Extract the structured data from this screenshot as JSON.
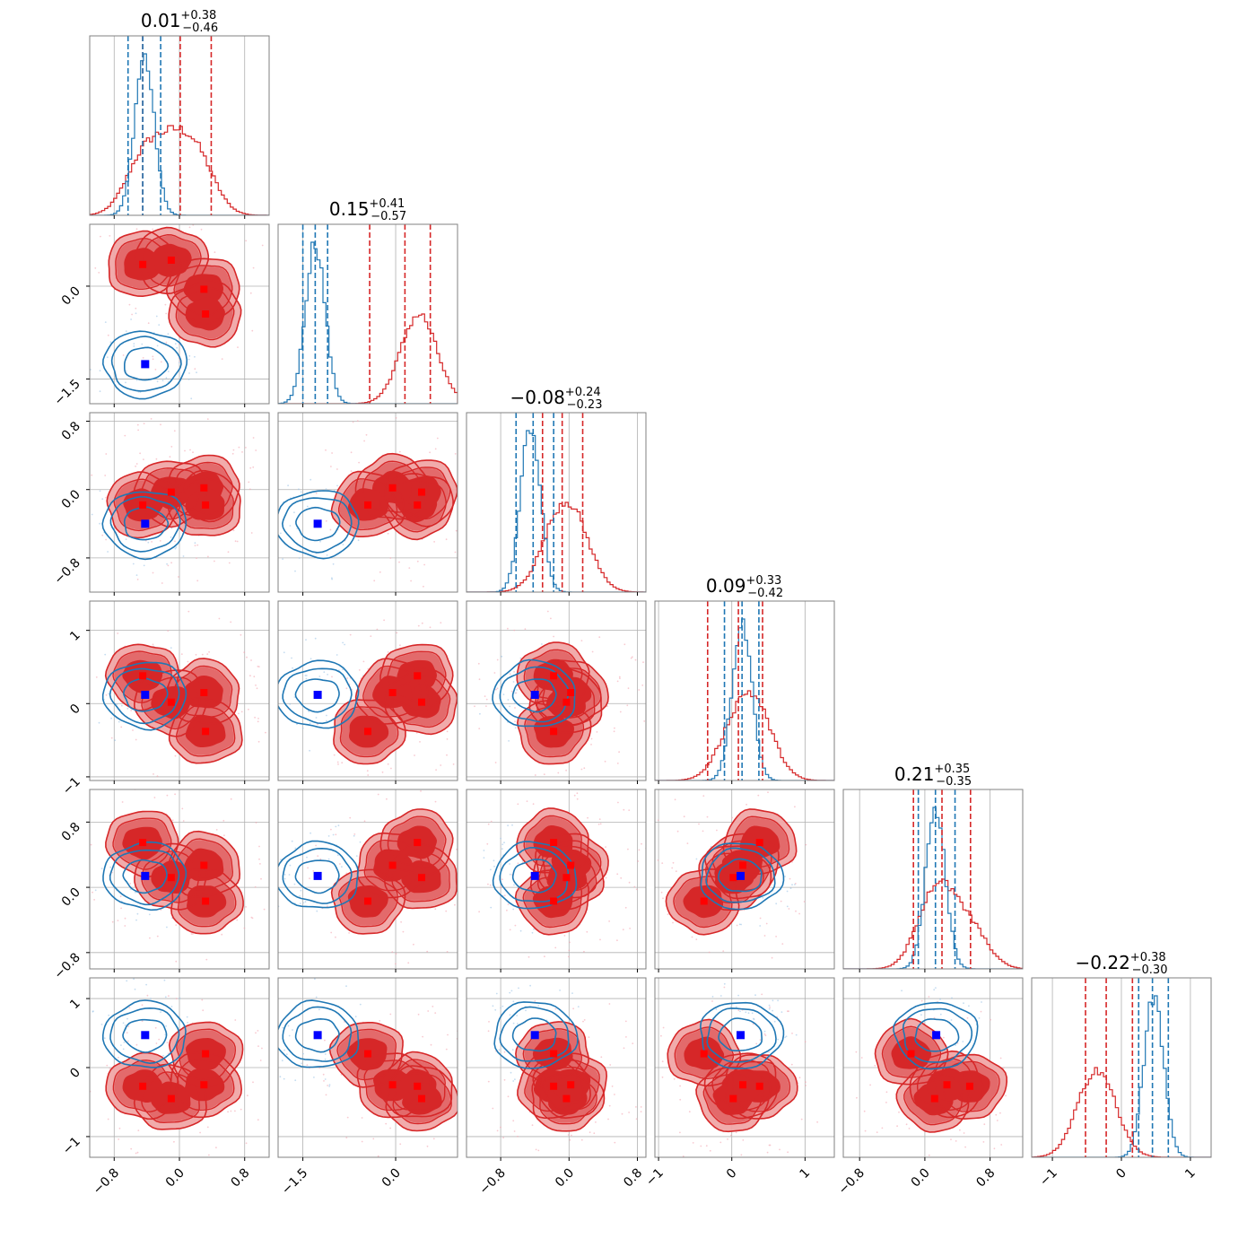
{
  "figure": {
    "colors": {
      "red": "#d62728",
      "blue": "#1f77b4",
      "red_fill_light": "#f0a6a6",
      "red_fill_mid": "#e36a6b",
      "red_fill_dark": "#d62728",
      "marker_red": "#ff0000",
      "marker_blue": "#0000ff",
      "grid": "#b0b0b0"
    }
  },
  "chart_data": {
    "type": "corner",
    "description_free": true,
    "params": [
      {
        "title_main": "0.01",
        "title_plus": "+0.38",
        "title_minus": "−0.46",
        "range": [
          -1.1,
          1.1
        ],
        "ticks": [
          -0.8,
          0.0,
          0.8
        ],
        "tick_labels": [
          "−0.8",
          "0.0",
          "0.8"
        ],
        "red_quantiles": [
          -0.45,
          0.01,
          0.39
        ],
        "blue_quantiles": [
          -0.63,
          -0.45,
          -0.23
        ],
        "truth": -0.42
      },
      {
        "title_main": "0.15",
        "title_plus": "+0.41",
        "title_minus": "−0.57",
        "range": [
          -1.9,
          1.0
        ],
        "ticks": [
          -1.5,
          0.0
        ],
        "tick_labels": [
          "−1.5",
          "0.0"
        ],
        "red_quantiles": [
          -0.42,
          0.15,
          0.56
        ],
        "blue_quantiles": [
          -1.5,
          -1.3,
          -1.1
        ],
        "truth": -1.26
      },
      {
        "title_main": "−0.08",
        "title_plus": "+0.24",
        "title_minus": "−0.23",
        "range": [
          -1.2,
          0.9
        ],
        "ticks": [
          -0.8,
          0.0,
          0.8
        ],
        "tick_labels": [
          "−0.8",
          "0.0",
          "0.8"
        ],
        "red_quantiles": [
          -0.31,
          -0.08,
          0.16
        ],
        "blue_quantiles": [
          -0.62,
          -0.42,
          -0.18
        ],
        "truth": -0.4
      },
      {
        "title_main": "0.09",
        "title_plus": "+0.33",
        "title_minus": "−0.42",
        "range": [
          -1.05,
          1.4
        ],
        "ticks": [
          -1,
          0,
          1
        ],
        "tick_labels": [
          "−1",
          "0",
          "1"
        ],
        "red_quantiles": [
          -0.33,
          0.09,
          0.42
        ],
        "blue_quantiles": [
          -0.1,
          0.14,
          0.37
        ],
        "truth": 0.12
      },
      {
        "title_main": "0.21",
        "title_plus": "+0.35",
        "title_minus": "−0.35",
        "range": [
          -1.0,
          1.2
        ],
        "ticks": [
          -0.8,
          0.0,
          0.8
        ],
        "tick_labels": [
          "−0.8",
          "0.0",
          "0.8"
        ],
        "red_quantiles": [
          -0.14,
          0.21,
          0.56
        ],
        "blue_quantiles": [
          -0.08,
          0.13,
          0.37
        ],
        "truth": 0.14
      },
      {
        "title_main": "−0.22",
        "title_plus": "+0.38",
        "title_minus": "−0.30",
        "range": [
          -1.3,
          1.3
        ],
        "ticks": [
          -1,
          0,
          1
        ],
        "tick_labels": [
          "−1",
          "0",
          "1"
        ],
        "red_quantiles": [
          -0.52,
          -0.22,
          0.16
        ],
        "blue_quantiles": [
          0.25,
          0.45,
          0.68
        ],
        "truth": 0.47
      }
    ],
    "red_modes": [
      [
        -0.45,
        0.35,
        -0.18,
        0.38,
        0.55,
        -0.27
      ],
      [
        -0.1,
        0.42,
        -0.03,
        0.02,
        0.12,
        -0.45
      ],
      [
        0.3,
        -0.05,
        0.02,
        0.15,
        0.27,
        -0.25
      ],
      [
        0.32,
        -0.45,
        -0.18,
        -0.38,
        -0.17,
        0.2
      ]
    ],
    "blue_center": [
      -0.42,
      -1.26,
      -0.4,
      0.12,
      0.14,
      0.47
    ],
    "blue_spread": [
      0.21,
      0.21,
      0.21,
      0.21,
      0.21,
      0.21
    ],
    "red_hist_peaks": [
      0.22,
      0.35,
      0.1,
      0.25,
      0.15,
      -0.35
    ],
    "blue_hist_peaks": [
      -0.43,
      -1.3,
      -0.45,
      0.14,
      0.13,
      0.47
    ]
  }
}
